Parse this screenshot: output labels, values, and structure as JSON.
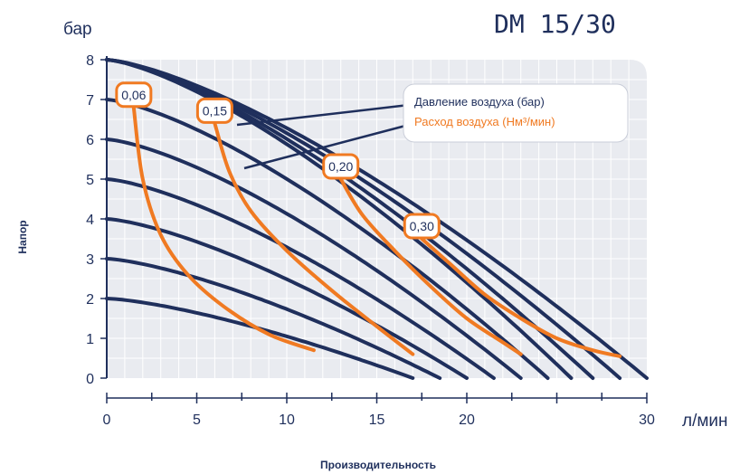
{
  "chart_data": {
    "type": "line",
    "title": "DM 15/30",
    "ylabel": "Напор",
    "yunit": "бар",
    "xlabel": "Производительность",
    "xunit": "л/мин",
    "xlim": [
      0,
      30
    ],
    "ylim": [
      0,
      8
    ],
    "xticks": [
      "0",
      "5",
      "10",
      "15",
      "20",
      "30"
    ],
    "yticks": [
      "0",
      "1",
      "2",
      "3",
      "4",
      "5",
      "6",
      "7",
      "8"
    ],
    "grid": true,
    "legend": {
      "position": "top-right",
      "entries": [
        {
          "label": "Давление воздуха (бар)",
          "color": "#1f2f5c"
        },
        {
          "label": "Расход воздуха (Нм³/мин)",
          "color": "#f07a22"
        }
      ]
    },
    "colors": {
      "pressure": "#1f2f5c",
      "flow": "#f07a22",
      "plot_bg": "#e9ebf0",
      "grid": "#ffffff"
    },
    "series": [
      {
        "group": "pressure",
        "start_head": 2,
        "end_flow": 17.0
      },
      {
        "group": "pressure",
        "start_head": 3,
        "end_flow": 18.5
      },
      {
        "group": "pressure",
        "start_head": 4,
        "end_flow": 20.0
      },
      {
        "group": "pressure",
        "start_head": 5,
        "end_flow": 21.5
      },
      {
        "group": "pressure",
        "start_head": 6,
        "end_flow": 23.0
      },
      {
        "group": "pressure",
        "start_head": 7,
        "end_flow": 24.5
      },
      {
        "group": "pressure",
        "start_head": 8,
        "end_flow": 25.8
      },
      {
        "group": "pressure",
        "start_head": 8,
        "end_flow": 27.0
      },
      {
        "group": "pressure",
        "start_head": 8,
        "end_flow": 28.5
      },
      {
        "group": "pressure",
        "start_head": 8,
        "end_flow": 30.0
      }
    ],
    "flow_curves": [
      {
        "name": "0,06",
        "points": [
          [
            1.5,
            6.8
          ],
          [
            2.0,
            5.0
          ],
          [
            3.0,
            3.6
          ],
          [
            4.5,
            2.6
          ],
          [
            6.5,
            1.8
          ],
          [
            9.0,
            1.1
          ],
          [
            11.5,
            0.7
          ]
        ]
      },
      {
        "name": "0,15",
        "points": [
          [
            6.0,
            6.4
          ],
          [
            6.8,
            5.2
          ],
          [
            8.0,
            4.2
          ],
          [
            10.0,
            3.2
          ],
          [
            12.5,
            2.2
          ],
          [
            15.0,
            1.3
          ],
          [
            17.0,
            0.6
          ]
        ]
      },
      {
        "name": "0,20",
        "points": [
          [
            13.0,
            5.0
          ],
          [
            14.2,
            4.1
          ],
          [
            16.0,
            3.2
          ],
          [
            18.0,
            2.3
          ],
          [
            20.0,
            1.5
          ],
          [
            22.0,
            0.9
          ],
          [
            23.0,
            0.6
          ]
        ]
      },
      {
        "name": "0,30",
        "points": [
          [
            17.5,
            3.5
          ],
          [
            19.0,
            2.9
          ],
          [
            21.0,
            2.1
          ],
          [
            23.0,
            1.5
          ],
          [
            25.0,
            1.0
          ],
          [
            27.0,
            0.7
          ],
          [
            28.5,
            0.55
          ]
        ]
      }
    ]
  }
}
